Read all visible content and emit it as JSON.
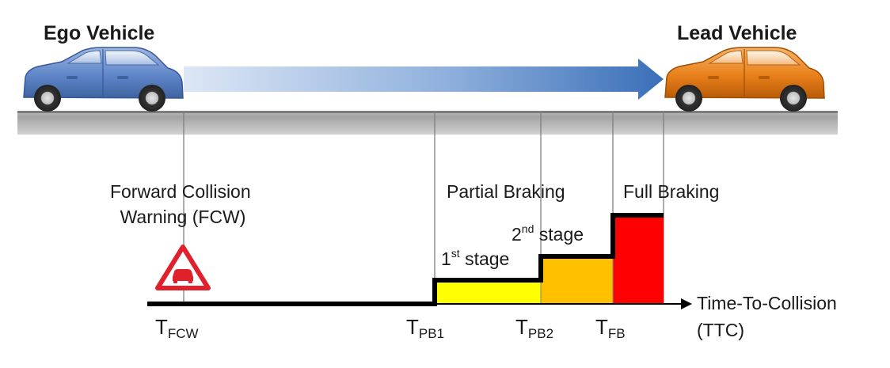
{
  "vehicles": {
    "ego_label": "Ego Vehicle",
    "lead_label": "Lead Vehicle",
    "ego_color": "#5f86c9",
    "lead_color": "#e8801a"
  },
  "labels": {
    "fcw_line1": "Forward Collision",
    "fcw_line2": "Warning (FCW)",
    "partial_braking": "Partial Braking",
    "full_braking": "Full Braking",
    "stage1": {
      "num": "1",
      "sup": "st",
      "rest": " stage"
    },
    "stage2": {
      "num": "2",
      "sup": "nd",
      "rest": " stage"
    }
  },
  "axis": {
    "title_line1": "Time-To-Collision",
    "title_line2": "(TTC)",
    "ticks": [
      {
        "main": "T",
        "sub": "FCW"
      },
      {
        "main": "T",
        "sub": "PB1"
      },
      {
        "main": "T",
        "sub": "PB2"
      },
      {
        "main": "T",
        "sub": "FB"
      }
    ]
  },
  "icons": {
    "warning": "car-warning-triangle-icon"
  },
  "colors": {
    "stage1_fill": "#ffff00",
    "stage2_fill": "#ffc000",
    "full_fill": "#ff0000",
    "road": "#a9a9a9",
    "arrow": "#3a6fb8",
    "warning_red": "#e0202a"
  }
}
